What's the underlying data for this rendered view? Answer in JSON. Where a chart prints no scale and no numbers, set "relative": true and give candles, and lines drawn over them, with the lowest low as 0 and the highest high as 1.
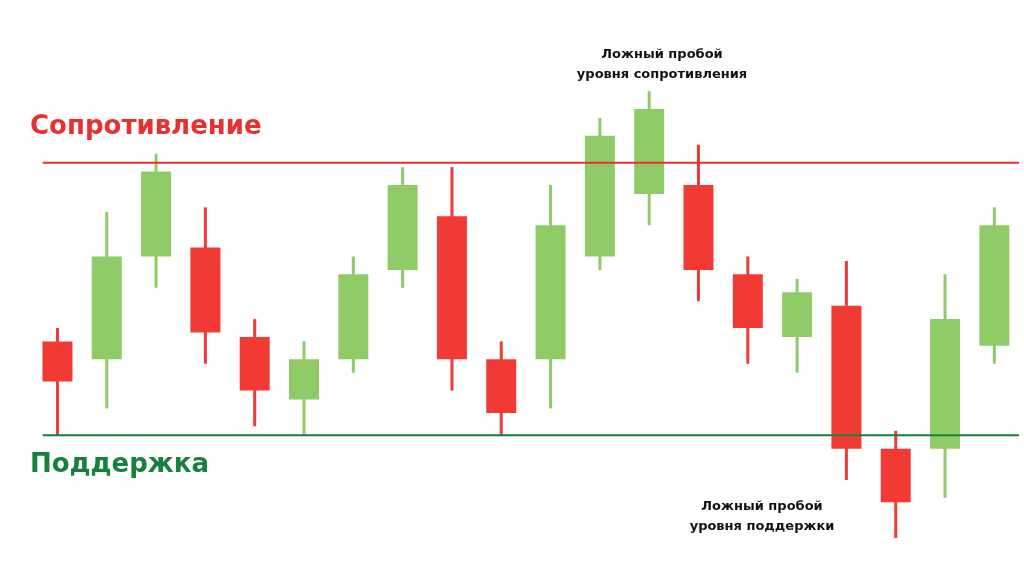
{
  "chart_data": {
    "type": "candlestick",
    "relative": true,
    "categories": [
      null,
      null,
      null,
      null,
      null,
      null,
      null,
      null,
      null,
      null,
      null,
      null,
      null,
      null,
      null,
      null,
      null,
      null,
      null,
      null
    ],
    "ohlc": [
      [
        0.44,
        0.47,
        0.23,
        0.35
      ],
      [
        0.4,
        0.73,
        0.29,
        0.63
      ],
      [
        0.63,
        0.86,
        0.56,
        0.82
      ],
      [
        0.65,
        0.74,
        0.39,
        0.46
      ],
      [
        0.45,
        0.49,
        0.25,
        0.33
      ],
      [
        0.31,
        0.44,
        0.23,
        0.4
      ],
      [
        0.4,
        0.63,
        0.37,
        0.59
      ],
      [
        0.6,
        0.83,
        0.56,
        0.79
      ],
      [
        0.72,
        0.83,
        0.33,
        0.4
      ],
      [
        0.4,
        0.44,
        0.23,
        0.28
      ],
      [
        0.4,
        0.79,
        0.29,
        0.7
      ],
      [
        0.63,
        0.94,
        0.6,
        0.9
      ],
      [
        0.77,
        1.0,
        0.7,
        0.96
      ],
      [
        0.79,
        0.88,
        0.53,
        0.6
      ],
      [
        0.59,
        0.63,
        0.39,
        0.47
      ],
      [
        0.45,
        0.58,
        0.37,
        0.55
      ],
      [
        0.52,
        0.62,
        0.13,
        0.2
      ],
      [
        0.2,
        0.24,
        0.0,
        0.08
      ],
      [
        0.2,
        0.59,
        0.09,
        0.49
      ],
      [
        0.43,
        0.74,
        0.39,
        0.7
      ]
    ],
    "colors": [
      "#f23a35",
      "#8fcb66",
      "#8fcb66",
      "#f23a35",
      "#f23a35",
      "#8fcb66",
      "#8fcb66",
      "#8fcb66",
      "#f23a35",
      "#f23a35",
      "#8fcb66",
      "#8fcb66",
      "#8fcb66",
      "#f23a35",
      "#f23a35",
      "#8fcb66",
      "#f23a35",
      "#f23a35",
      "#8fcb66",
      "#8fcb66"
    ],
    "ref_lines": [
      {
        "axis": "y",
        "value": 0.84,
        "label": "Сопротивление",
        "color": "#e8312e"
      },
      {
        "axis": "y",
        "value": 0.23,
        "label": "Поддержка",
        "color": "#16803c"
      }
    ],
    "annotations": [
      "Ложный пробой\nуровня сопротивления",
      "Ложный пробой\nуровня поддержки"
    ]
  }
}
